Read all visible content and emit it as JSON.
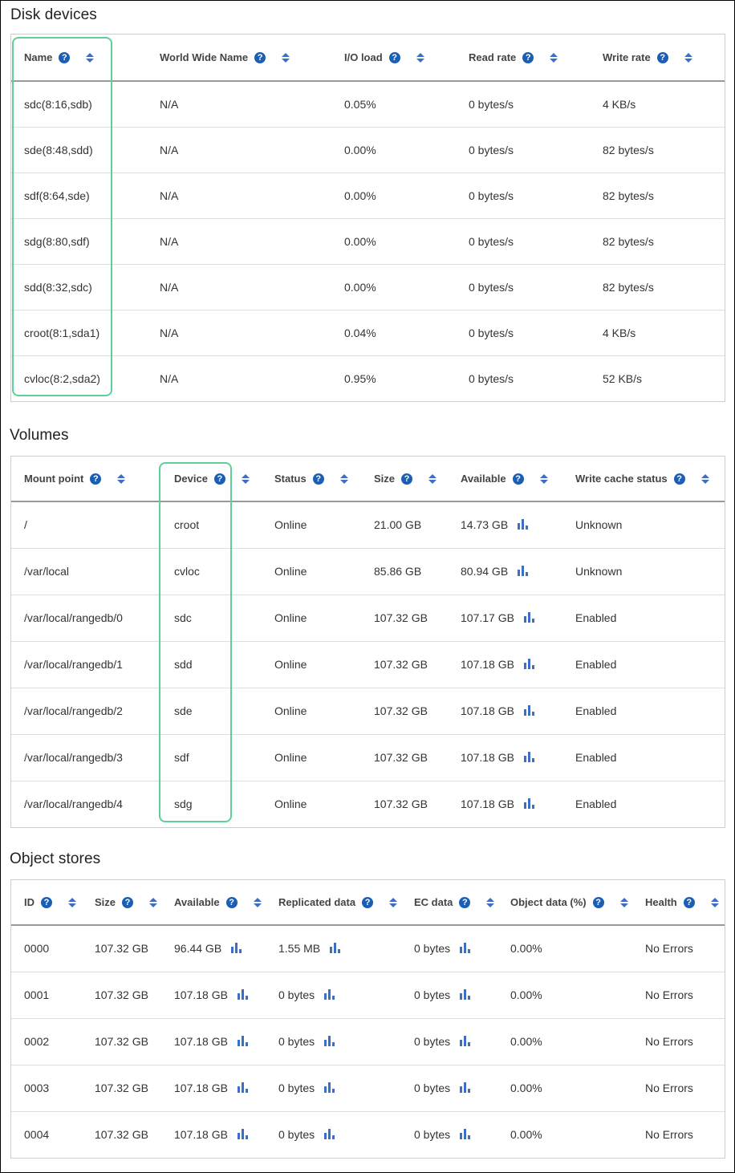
{
  "colors": {
    "accent": "#1a5fb4",
    "highlight": "#5fcf98"
  },
  "disk_devices": {
    "title": "Disk devices",
    "columns": [
      {
        "label": "Name"
      },
      {
        "label": "World Wide Name"
      },
      {
        "label": "I/O load"
      },
      {
        "label": "Read rate"
      },
      {
        "label": "Write rate"
      }
    ],
    "rows": [
      [
        "sdc(8:16,sdb)",
        "N/A",
        "0.05%",
        "0 bytes/s",
        "4 KB/s"
      ],
      [
        "sde(8:48,sdd)",
        "N/A",
        "0.00%",
        "0 bytes/s",
        "82 bytes/s"
      ],
      [
        "sdf(8:64,sde)",
        "N/A",
        "0.00%",
        "0 bytes/s",
        "82 bytes/s"
      ],
      [
        "sdg(8:80,sdf)",
        "N/A",
        "0.00%",
        "0 bytes/s",
        "82 bytes/s"
      ],
      [
        "sdd(8:32,sdc)",
        "N/A",
        "0.00%",
        "0 bytes/s",
        "82 bytes/s"
      ],
      [
        "croot(8:1,sda1)",
        "N/A",
        "0.04%",
        "0 bytes/s",
        "4 KB/s"
      ],
      [
        "cvloc(8:2,sda2)",
        "N/A",
        "0.95%",
        "0 bytes/s",
        "52 KB/s"
      ]
    ]
  },
  "volumes": {
    "title": "Volumes",
    "columns": [
      {
        "label": "Mount point"
      },
      {
        "label": "Device"
      },
      {
        "label": "Status"
      },
      {
        "label": "Size"
      },
      {
        "label": "Available",
        "icon": "bar-chart-icon"
      },
      {
        "label": "Write cache status"
      }
    ],
    "rows": [
      [
        "/",
        "croot",
        "Online",
        "21.00 GB",
        "14.73 GB",
        "Unknown"
      ],
      [
        "/var/local",
        "cvloc",
        "Online",
        "85.86 GB",
        "80.94 GB",
        "Unknown"
      ],
      [
        "/var/local/rangedb/0",
        "sdc",
        "Online",
        "107.32 GB",
        "107.17 GB",
        "Enabled"
      ],
      [
        "/var/local/rangedb/1",
        "sdd",
        "Online",
        "107.32 GB",
        "107.18 GB",
        "Enabled"
      ],
      [
        "/var/local/rangedb/2",
        "sde",
        "Online",
        "107.32 GB",
        "107.18 GB",
        "Enabled"
      ],
      [
        "/var/local/rangedb/3",
        "sdf",
        "Online",
        "107.32 GB",
        "107.18 GB",
        "Enabled"
      ],
      [
        "/var/local/rangedb/4",
        "sdg",
        "Online",
        "107.32 GB",
        "107.18 GB",
        "Enabled"
      ]
    ]
  },
  "object_stores": {
    "title": "Object stores",
    "columns": [
      {
        "label": "ID"
      },
      {
        "label": "Size"
      },
      {
        "label": "Available",
        "icon": "bar-chart-icon"
      },
      {
        "label": "Replicated data",
        "icon": "bar-chart-icon"
      },
      {
        "label": "EC data",
        "icon": "bar-chart-icon"
      },
      {
        "label": "Object data (%)"
      },
      {
        "label": "Health"
      }
    ],
    "rows": [
      [
        "0000",
        "107.32 GB",
        "96.44 GB",
        "1.55 MB",
        "0 bytes",
        "0.00%",
        "No Errors"
      ],
      [
        "0001",
        "107.32 GB",
        "107.18 GB",
        "0 bytes",
        "0 bytes",
        "0.00%",
        "No Errors"
      ],
      [
        "0002",
        "107.32 GB",
        "107.18 GB",
        "0 bytes",
        "0 bytes",
        "0.00%",
        "No Errors"
      ],
      [
        "0003",
        "107.32 GB",
        "107.18 GB",
        "0 bytes",
        "0 bytes",
        "0.00%",
        "No Errors"
      ],
      [
        "0004",
        "107.32 GB",
        "107.18 GB",
        "0 bytes",
        "0 bytes",
        "0.00%",
        "No Errors"
      ]
    ]
  }
}
